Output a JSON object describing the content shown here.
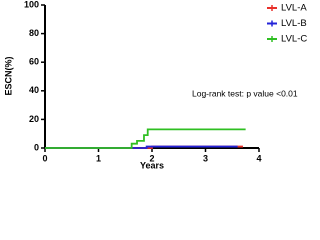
{
  "chart_data": {
    "type": "line",
    "step": true,
    "x_label": "Years",
    "y_label": "ESCN(%)",
    "annotation": "Log-rank test: p value <0.01",
    "xlim": [
      0,
      4
    ],
    "xticks": [
      0,
      1,
      2,
      3,
      4
    ],
    "ylim": [
      0,
      100
    ],
    "yticks": [
      0,
      20,
      40,
      60,
      80,
      100
    ],
    "legend": "upper right",
    "series": [
      {
        "name": "LVL-A",
        "color": "#e8302a",
        "x": [
          0,
          2.0,
          3.7
        ],
        "values": [
          0,
          1,
          1
        ]
      },
      {
        "name": "LVL-B",
        "color": "#2323d8",
        "x": [
          0,
          1.9,
          3.6
        ],
        "values": [
          0,
          1,
          1
        ]
      },
      {
        "name": "LVL-C",
        "color": "#2fbf22",
        "x": [
          0,
          1.62,
          1.72,
          1.85,
          1.92,
          3.75
        ],
        "values": [
          0,
          3,
          5,
          9,
          13,
          13
        ]
      }
    ]
  }
}
